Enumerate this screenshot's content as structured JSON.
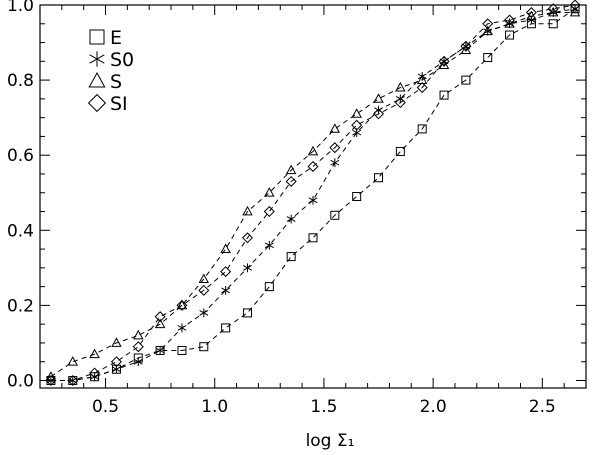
{
  "chart_data": {
    "type": "scatter",
    "title": "",
    "xlabel": "log Σ₁",
    "ylabel": "",
    "xlim": [
      0.2,
      2.7
    ],
    "ylim": [
      -0.02,
      1.0
    ],
    "grid": false,
    "legend_position": "top-left",
    "x_ticks": [
      {
        "value": 0.5,
        "label": "0.5"
      },
      {
        "value": 1.0,
        "label": "1.0"
      },
      {
        "value": 1.5,
        "label": "1.5"
      },
      {
        "value": 2.0,
        "label": "2.0"
      },
      {
        "value": 2.5,
        "label": "2.5"
      }
    ],
    "y_ticks": [
      {
        "value": 0.0,
        "label": "0.0"
      },
      {
        "value": 0.2,
        "label": "0.2"
      },
      {
        "value": 0.4,
        "label": "0.4"
      },
      {
        "value": 0.6,
        "label": "0.6"
      },
      {
        "value": 0.8,
        "label": "0.8"
      },
      {
        "value": 1.0,
        "label": "1.0"
      }
    ],
    "series": [
      {
        "name": "E",
        "marker": "square",
        "x": [
          0.25,
          0.35,
          0.45,
          0.55,
          0.65,
          0.75,
          0.85,
          0.95,
          1.05,
          1.15,
          1.25,
          1.35,
          1.45,
          1.55,
          1.65,
          1.75,
          1.85,
          1.95,
          2.05,
          2.15,
          2.25,
          2.35,
          2.45,
          2.55,
          2.65
        ],
        "y": [
          0.0,
          0.0,
          0.01,
          0.03,
          0.06,
          0.08,
          0.08,
          0.09,
          0.14,
          0.18,
          0.25,
          0.33,
          0.38,
          0.44,
          0.49,
          0.54,
          0.61,
          0.67,
          0.76,
          0.8,
          0.86,
          0.92,
          0.95,
          0.95,
          0.99
        ]
      },
      {
        "name": "S0",
        "marker": "asterisk",
        "x": [
          0.25,
          0.35,
          0.45,
          0.55,
          0.65,
          0.75,
          0.85,
          0.95,
          1.05,
          1.15,
          1.25,
          1.35,
          1.45,
          1.55,
          1.65,
          1.75,
          1.85,
          1.95,
          2.05,
          2.15,
          2.25,
          2.35,
          2.45,
          2.55,
          2.65
        ],
        "y": [
          0.0,
          0.0,
          0.01,
          0.03,
          0.05,
          0.08,
          0.14,
          0.18,
          0.24,
          0.3,
          0.36,
          0.43,
          0.48,
          0.58,
          0.66,
          0.72,
          0.75,
          0.81,
          0.85,
          0.89,
          0.93,
          0.95,
          0.96,
          0.98,
          0.99
        ]
      },
      {
        "name": "S",
        "marker": "triangle",
        "x": [
          0.25,
          0.35,
          0.45,
          0.55,
          0.65,
          0.75,
          0.85,
          0.95,
          1.05,
          1.15,
          1.25,
          1.35,
          1.45,
          1.55,
          1.65,
          1.75,
          1.85,
          1.95,
          2.05,
          2.15,
          2.25,
          2.35,
          2.45,
          2.55,
          2.65
        ],
        "y": [
          0.01,
          0.05,
          0.07,
          0.1,
          0.12,
          0.15,
          0.2,
          0.27,
          0.35,
          0.45,
          0.5,
          0.56,
          0.61,
          0.67,
          0.71,
          0.75,
          0.78,
          0.8,
          0.84,
          0.88,
          0.93,
          0.95,
          0.97,
          0.98,
          0.98
        ]
      },
      {
        "name": "SI",
        "marker": "diamond",
        "x": [
          0.25,
          0.35,
          0.45,
          0.55,
          0.65,
          0.75,
          0.85,
          0.95,
          1.05,
          1.15,
          1.25,
          1.35,
          1.45,
          1.55,
          1.65,
          1.75,
          1.85,
          1.95,
          2.05,
          2.15,
          2.25,
          2.35,
          2.45,
          2.55,
          2.65
        ],
        "y": [
          0.0,
          0.0,
          0.02,
          0.05,
          0.09,
          0.17,
          0.2,
          0.24,
          0.29,
          0.38,
          0.45,
          0.53,
          0.57,
          0.62,
          0.68,
          0.71,
          0.74,
          0.78,
          0.85,
          0.89,
          0.95,
          0.96,
          0.98,
          0.99,
          1.0
        ]
      }
    ]
  }
}
